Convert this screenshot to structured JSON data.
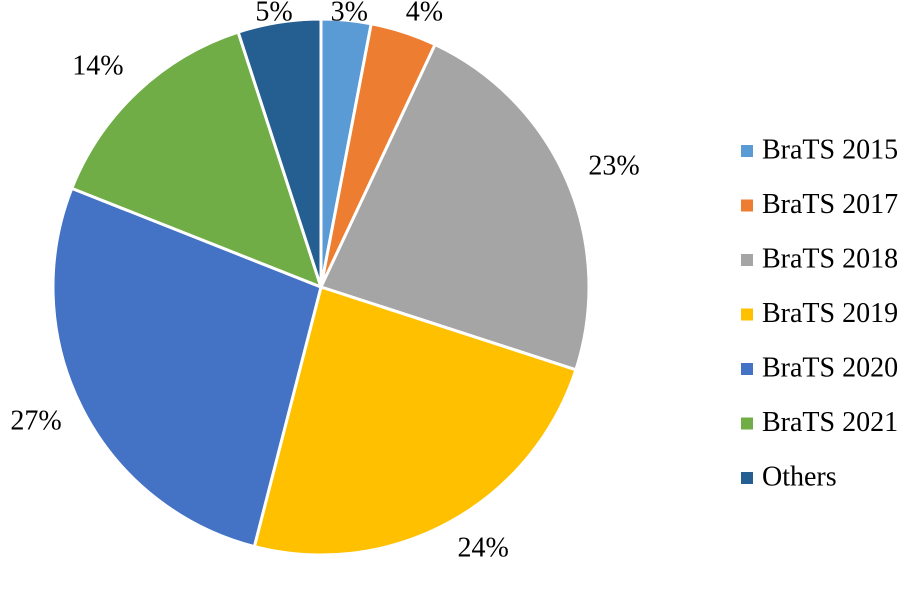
{
  "chart_data": {
    "type": "pie",
    "categories": [
      "BraTS 2015",
      "BraTS 2017",
      "BraTS 2018",
      "BraTS 2019",
      "BraTS 2020",
      "BraTS 2021",
      "Others"
    ],
    "values": [
      3,
      4,
      23,
      24,
      27,
      14,
      5
    ],
    "value_labels": [
      "3%",
      "4%",
      "23%",
      "24%",
      "27%",
      "14%",
      "5%"
    ],
    "colors": [
      "#5b9bd5",
      "#ed7d31",
      "#a5a5a5",
      "#ffc000",
      "#4472c4",
      "#70ad47",
      "#255e91"
    ],
    "legend": "right"
  }
}
